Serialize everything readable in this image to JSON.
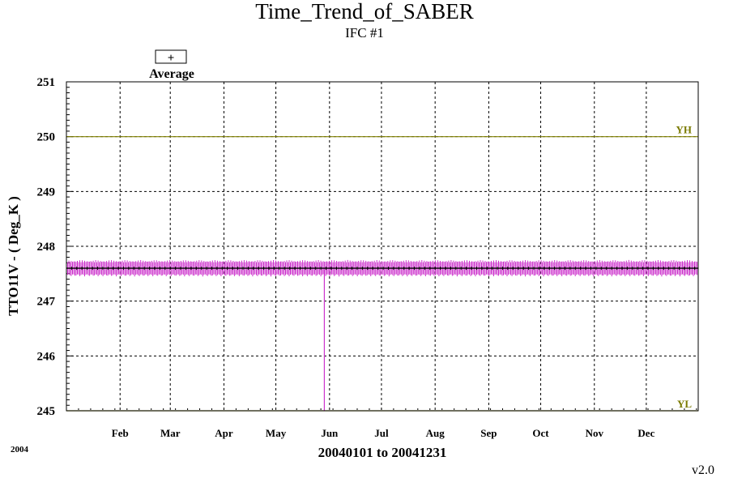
{
  "chart_data": {
    "type": "line",
    "title": "Time_Trend_of_SABER",
    "subtitle": "IFC #1",
    "ylabel": "TTO11V  -  ( Deg_K )",
    "xlabel": "20040101 to 20041231",
    "year_label": "2004",
    "version": "v2.0",
    "ylim": [
      245,
      251
    ],
    "yticks": [
      "245",
      "246",
      "247",
      "248",
      "249",
      "250",
      "251"
    ],
    "x_range_days": [
      1,
      366
    ],
    "months": [
      "Feb",
      "Mar",
      "Apr",
      "May",
      "Jun",
      "Jul",
      "Aug",
      "Sep",
      "Oct",
      "Nov",
      "Dec"
    ],
    "month_start_days": [
      32,
      61,
      92,
      122,
      153,
      183,
      214,
      245,
      275,
      306,
      336
    ],
    "grid": true,
    "legend": {
      "symbol": "+",
      "label": "Average",
      "placement": "top-left"
    },
    "limits": [
      {
        "name": "YH",
        "value": 250.0,
        "color": "#808000"
      },
      {
        "name": "YL",
        "value": 245.0,
        "color": "#808000"
      }
    ],
    "series": [
      {
        "name": "Average",
        "color": "#000000",
        "mean": 247.6,
        "band": [
          247.55,
          247.68
        ]
      },
      {
        "color": "#cc33cc",
        "band": [
          247.45,
          247.75
        ],
        "spike": {
          "day": 150,
          "low": 245.0,
          "high": 247.6
        }
      }
    ]
  }
}
